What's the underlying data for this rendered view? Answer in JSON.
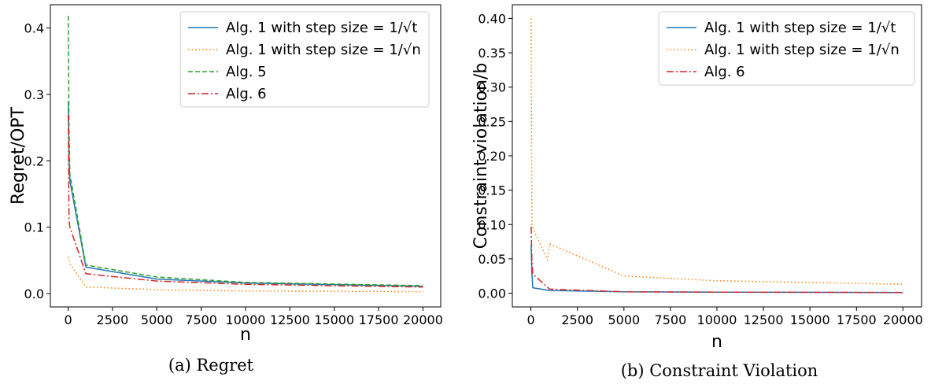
{
  "chart_data": [
    {
      "type": "line",
      "caption": "(a) Regret",
      "xlabel": "n",
      "ylabel": "Regret/OPT",
      "xlim": [
        -1000,
        21000
      ],
      "ylim": [
        -0.02,
        0.435
      ],
      "xticks": [
        0,
        2500,
        5000,
        7500,
        10000,
        12500,
        15000,
        17500,
        20000
      ],
      "yticks": [
        0.0,
        0.1,
        0.2,
        0.3,
        0.4
      ],
      "ytick_labels": [
        "0.0",
        "0.1",
        "0.2",
        "0.3",
        "0.4"
      ],
      "legend_position": "top-right",
      "series": [
        {
          "name": "Alg. 1 with step size = 1/√t",
          "color": "#1f77b4",
          "style": "solid",
          "x": [
            10,
            50,
            100,
            1000,
            5000,
            10000,
            20000
          ],
          "y": [
            0.29,
            0.2,
            0.17,
            0.04,
            0.022,
            0.016,
            0.011
          ]
        },
        {
          "name": "Alg. 1 with step size = 1/√n",
          "color": "#ff7f0e",
          "style": "dotted",
          "x": [
            10,
            50,
            100,
            1000,
            5000,
            10000,
            20000
          ],
          "y": [
            0.055,
            0.05,
            0.045,
            0.01,
            0.006,
            0.004,
            0.003
          ]
        },
        {
          "name": "Alg. 5",
          "color": "#2ca02c",
          "style": "dashed",
          "x": [
            10,
            50,
            100,
            1000,
            5000,
            10000,
            20000
          ],
          "y": [
            0.418,
            0.25,
            0.18,
            0.043,
            0.025,
            0.017,
            0.012
          ]
        },
        {
          "name": "Alg. 6",
          "color": "#d62728",
          "style": "dashdot",
          "x": [
            10,
            50,
            100,
            1000,
            5000,
            10000,
            20000
          ],
          "y": [
            0.27,
            0.11,
            0.1,
            0.03,
            0.019,
            0.014,
            0.01
          ]
        }
      ]
    },
    {
      "type": "line",
      "caption": "(b) Constraint Violation",
      "xlabel": "n",
      "ylabel": "Constraint violation/b",
      "xlim": [
        -1000,
        21000
      ],
      "ylim": [
        -0.02,
        0.42
      ],
      "xticks": [
        0,
        2500,
        5000,
        7500,
        10000,
        12500,
        15000,
        17500,
        20000
      ],
      "yticks": [
        0.0,
        0.05,
        0.1,
        0.15,
        0.2,
        0.25,
        0.3,
        0.35,
        0.4
      ],
      "ytick_labels": [
        "0.00",
        "0.05",
        "0.10",
        "0.15",
        "0.20",
        "0.25",
        "0.30",
        "0.35",
        "0.40"
      ],
      "legend_position": "top-right",
      "series": [
        {
          "name": "Alg. 1 with step size = 1/√t",
          "color": "#1f77b4",
          "style": "solid",
          "x": [
            10,
            50,
            100,
            1000,
            5000,
            10000,
            20000
          ],
          "y": [
            0.07,
            0.03,
            0.008,
            0.004,
            0.002,
            0.0015,
            0.001
          ]
        },
        {
          "name": "Alg. 1 with step size = 1/√n",
          "color": "#ff7f0e",
          "style": "dotted",
          "x": [
            10,
            50,
            100,
            900,
            1000,
            5000,
            10000,
            20000
          ],
          "y": [
            0.4,
            0.1,
            0.095,
            0.048,
            0.072,
            0.025,
            0.018,
            0.013
          ]
        },
        {
          "name": "Alg. 6",
          "color": "#d62728",
          "style": "dashdot",
          "x": [
            10,
            50,
            100,
            1000,
            5000,
            10000,
            20000
          ],
          "y": [
            0.097,
            0.05,
            0.028,
            0.006,
            0.002,
            0.0015,
            0.001
          ]
        }
      ]
    }
  ]
}
